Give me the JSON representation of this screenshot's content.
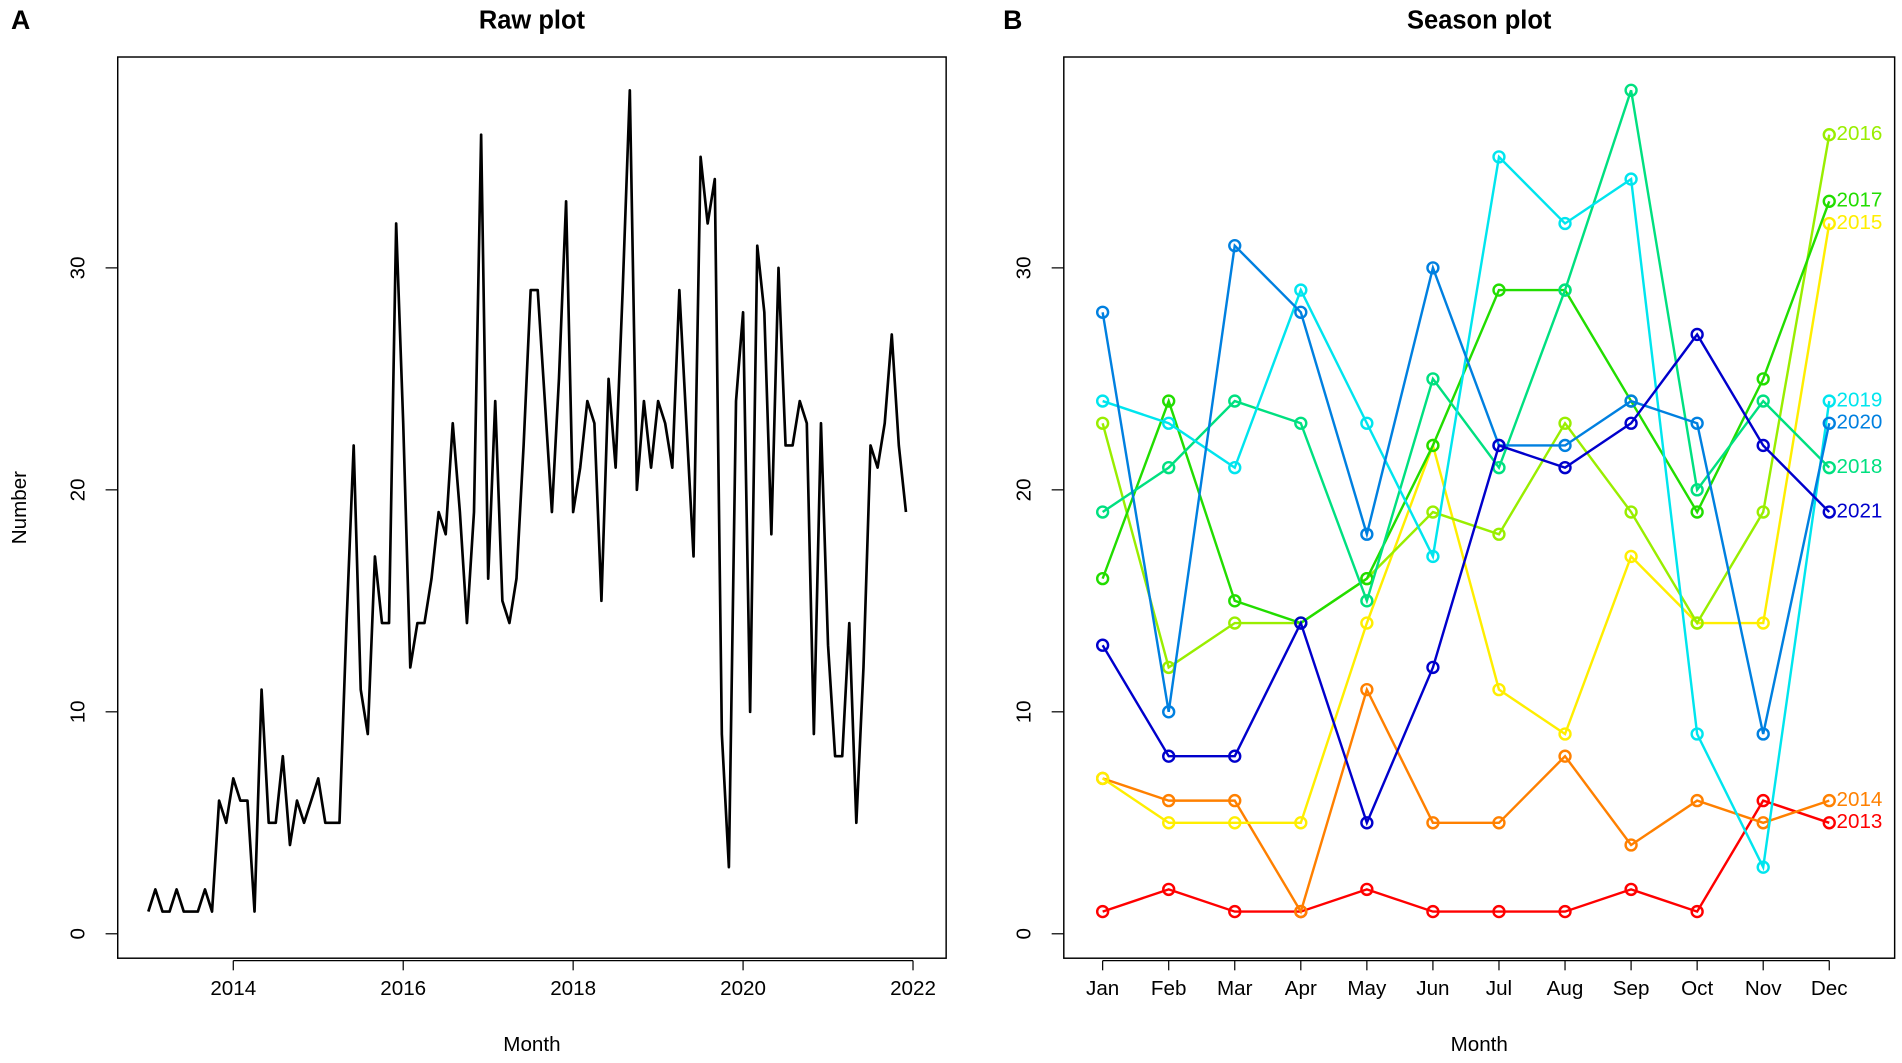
{
  "chart_data": [
    {
      "type": "line",
      "panel_label": "A",
      "title": "Raw plot",
      "x_label": "Month",
      "y_label": "Number",
      "color": "#000000",
      "x": [
        2013,
        2013.083,
        2013.167,
        2013.25,
        2013.333,
        2013.417,
        2013.5,
        2013.583,
        2013.667,
        2013.75,
        2013.833,
        2013.917,
        2014,
        2014.083,
        2014.167,
        2014.25,
        2014.333,
        2014.417,
        2014.5,
        2014.583,
        2014.667,
        2014.75,
        2014.833,
        2014.917,
        2015,
        2015.083,
        2015.167,
        2015.25,
        2015.333,
        2015.417,
        2015.5,
        2015.583,
        2015.667,
        2015.75,
        2015.833,
        2015.917,
        2016,
        2016.083,
        2016.167,
        2016.25,
        2016.333,
        2016.417,
        2016.5,
        2016.583,
        2016.667,
        2016.75,
        2016.833,
        2016.917,
        2017,
        2017.083,
        2017.167,
        2017.25,
        2017.333,
        2017.417,
        2017.5,
        2017.583,
        2017.667,
        2017.75,
        2017.833,
        2017.917,
        2018,
        2018.083,
        2018.167,
        2018.25,
        2018.333,
        2018.417,
        2018.5,
        2018.583,
        2018.667,
        2018.75,
        2018.833,
        2018.917,
        2019,
        2019.083,
        2019.167,
        2019.25,
        2019.333,
        2019.417,
        2019.5,
        2019.583,
        2019.667,
        2019.75,
        2019.833,
        2019.917,
        2020,
        2020.083,
        2020.167,
        2020.25,
        2020.333,
        2020.417,
        2020.5,
        2020.583,
        2020.667,
        2020.75,
        2020.833,
        2020.917,
        2021,
        2021.083,
        2021.167,
        2021.25,
        2021.333,
        2021.417,
        2021.5,
        2021.583,
        2021.667,
        2021.75,
        2021.833,
        2021.917
      ],
      "values": [
        1,
        2,
        1,
        1,
        2,
        1,
        1,
        1,
        2,
        1,
        6,
        5,
        7,
        6,
        6,
        1,
        11,
        5,
        5,
        8,
        4,
        6,
        5,
        6,
        7,
        5,
        5,
        5,
        14,
        22,
        11,
        9,
        17,
        14,
        14,
        32,
        23,
        12,
        14,
        14,
        16,
        19,
        18,
        23,
        19,
        14,
        19,
        36,
        16,
        24,
        15,
        14,
        16,
        22,
        29,
        29,
        24,
        19,
        25,
        33,
        19,
        21,
        24,
        23,
        15,
        25,
        21,
        29,
        38,
        20,
        24,
        21,
        24,
        23,
        21,
        29,
        23,
        17,
        35,
        32,
        34,
        9,
        3,
        24,
        28,
        10,
        31,
        28,
        18,
        30,
        22,
        22,
        24,
        23,
        9,
        23,
        13,
        8,
        8,
        14,
        5,
        12,
        22,
        21,
        23,
        27,
        22,
        19
      ],
      "xlim": [
        2012.64,
        2022.39
      ],
      "ylim": [
        -1.1,
        39.5
      ],
      "xticks": [
        2014,
        2016,
        2018,
        2020,
        2022
      ],
      "yticks": [
        0,
        10,
        20,
        30
      ]
    },
    {
      "type": "line",
      "panel_label": "B",
      "title": "Season plot",
      "x_label": "Month",
      "categories": [
        "Jan",
        "Feb",
        "Mar",
        "Apr",
        "May",
        "Jun",
        "Jul",
        "Aug",
        "Sep",
        "Oct",
        "Nov",
        "Dec"
      ],
      "ylim": [
        -1.1,
        39.5
      ],
      "yticks": [
        0,
        10,
        20,
        30
      ],
      "series": [
        {
          "name": "2013",
          "color": "#ff0000",
          "values": [
            1,
            2,
            1,
            1,
            2,
            1,
            1,
            1,
            2,
            1,
            6,
            5
          ]
        },
        {
          "name": "2014",
          "color": "#ff8000",
          "values": [
            7,
            6,
            6,
            1,
            11,
            5,
            5,
            8,
            4,
            6,
            5,
            6
          ]
        },
        {
          "name": "2015",
          "color": "#ffee00",
          "values": [
            7,
            5,
            5,
            5,
            14,
            22,
            11,
            9,
            17,
            14,
            14,
            32
          ]
        },
        {
          "name": "2016",
          "color": "#99ee00",
          "values": [
            23,
            12,
            14,
            14,
            16,
            19,
            18,
            23,
            19,
            14,
            19,
            36
          ]
        },
        {
          "name": "2017",
          "color": "#22dd00",
          "values": [
            16,
            24,
            15,
            14,
            16,
            22,
            29,
            29,
            24,
            19,
            25,
            33
          ]
        },
        {
          "name": "2018",
          "color": "#00e080",
          "values": [
            19,
            21,
            24,
            23,
            15,
            25,
            21,
            29,
            38,
            20,
            24,
            21
          ]
        },
        {
          "name": "2019",
          "color": "#00e5ee",
          "values": [
            24,
            23,
            21,
            29,
            23,
            17,
            35,
            32,
            34,
            9,
            3,
            24
          ]
        },
        {
          "name": "2020",
          "color": "#0080e0",
          "values": [
            28,
            10,
            31,
            28,
            18,
            30,
            22,
            22,
            24,
            23,
            9,
            23
          ]
        },
        {
          "name": "2021",
          "color": "#0000cc",
          "values": [
            13,
            8,
            8,
            14,
            5,
            12,
            22,
            21,
            23,
            27,
            22,
            19
          ]
        }
      ]
    }
  ]
}
